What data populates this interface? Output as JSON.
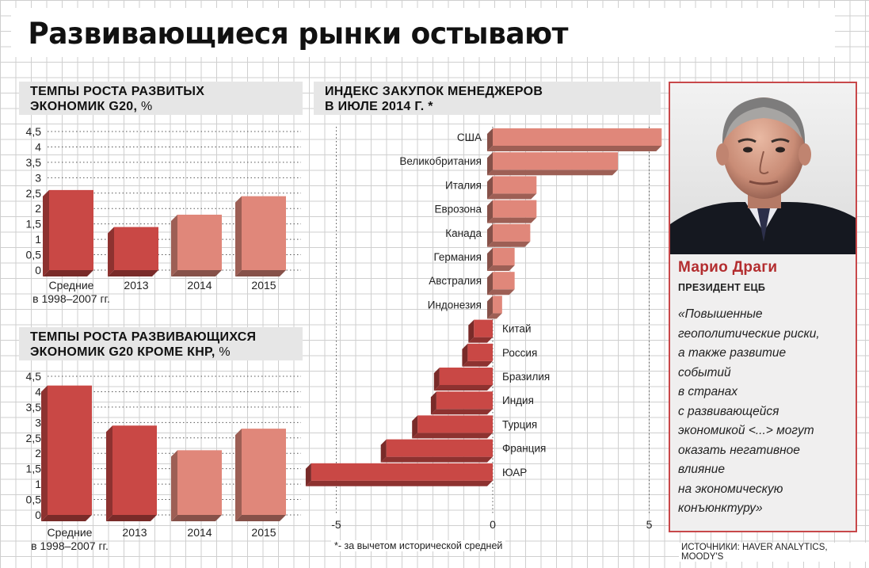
{
  "title": "Развивающиеся рынки остывают",
  "chart_data": [
    {
      "type": "bar",
      "title_lines": [
        "ТЕМПЫ РОСТА РАЗВИТЫХ",
        "ЭКОНОМИК G20,"
      ],
      "unit": "%",
      "categories": [
        "Средние\nв 1998–2007 гг.",
        "2013",
        "2014",
        "2015"
      ],
      "values": [
        2.6,
        1.4,
        1.8,
        2.4
      ],
      "y_ticks": [
        "0",
        "0,5",
        "1",
        "1,5",
        "2",
        "2,5",
        "3",
        "3,5",
        "4",
        "4,5"
      ],
      "ylim": [
        0,
        4.5
      ],
      "colors": [
        "#c94845",
        "#c94845",
        "#e0877a",
        "#e0877a"
      ]
    },
    {
      "type": "bar",
      "title_lines": [
        "ТЕМПЫ РОСТА РАЗВИВАЮЩИХСЯ",
        "ЭКОНОМИК G20 КРОМЕ КНР,"
      ],
      "unit": "%",
      "categories": [
        "Средние\nв 1998–2007 гг.",
        "2013",
        "2014",
        "2015"
      ],
      "values": [
        4.2,
        2.9,
        2.1,
        2.8
      ],
      "y_ticks": [
        "0",
        "0,5",
        "1",
        "1,5",
        "2",
        "2,5",
        "3",
        "3,5",
        "4",
        "4,5"
      ],
      "ylim": [
        0,
        4.5
      ],
      "colors": [
        "#c94845",
        "#c94845",
        "#e0877a",
        "#e0877a"
      ]
    },
    {
      "type": "bar",
      "orientation": "horizontal",
      "title_lines": [
        "ИНДЕКС ЗАКУПОК МЕНЕДЖЕРОВ",
        "В ИЮЛЕ 2014 Г. *"
      ],
      "categories": [
        "США",
        "Великобритания",
        "Италия",
        "Еврозона",
        "Канада",
        "Германия",
        "Австралия",
        "Индонезия",
        "Китай",
        "Россия",
        "Бразилия",
        "Индия",
        "Турция",
        "Франция",
        "ЮАР"
      ],
      "values": [
        5.4,
        4.0,
        1.4,
        1.4,
        1.2,
        0.7,
        0.7,
        0.3,
        -0.6,
        -0.8,
        -1.7,
        -1.8,
        -2.4,
        -3.4,
        -5.8
      ],
      "x_ticks": [
        {
          "value": -5,
          "label": "-5"
        },
        {
          "value": 0,
          "label": "0"
        },
        {
          "value": 5,
          "label": "5"
        }
      ],
      "xlim": [
        -5.8,
        5.4
      ],
      "colors": {
        "positive": "#e0877a",
        "negative": "#c94845"
      }
    }
  ],
  "portrait": {
    "name": "Марио Драги",
    "role": "ПРЕЗИДЕНТ ЕЦБ",
    "quote_lines": [
      "«Повышенные",
      "геополитические риски,",
      "а также развитие",
      "событий",
      "в странах",
      "с развивающейся",
      "экономикой <...> могут",
      "оказать негативное",
      "влияние",
      "на экономическую",
      "конъюнктуру»"
    ]
  },
  "footnote": "*- за вычетом исторической средней",
  "sources": "ИСТОЧНИКИ: HAVER ANALYTICS, MOODY'S"
}
